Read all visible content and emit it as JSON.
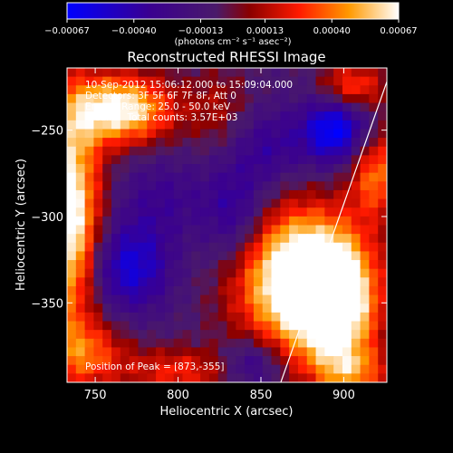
{
  "chart_data": {
    "type": "heatmap",
    "title": "Reconstructed RHESSI Image",
    "xlabel": "Heliocentric X (arcsec)",
    "ylabel": "Heliocentric Y (arcsec)",
    "xlim": [
      733,
      926
    ],
    "ylim": [
      -396,
      -214
    ],
    "xticks": [
      750,
      800,
      850,
      900
    ],
    "xtick_labels": [
      "750",
      "800",
      "850",
      "900"
    ],
    "yticks": [
      -250,
      -300,
      -350
    ],
    "ytick_labels": [
      "−250",
      "−300",
      "−350"
    ],
    "colorbar": {
      "range": [
        -0.00067,
        0.00067
      ],
      "ticks": [
        -0.00067,
        -0.0004,
        -0.00013,
        0.00013,
        0.0004,
        0.00067
      ],
      "tick_labels": [
        "−0.00067",
        "−0.00040",
        "−0.00013",
        "0.00013",
        "0.00040",
        "0.00067"
      ],
      "units": "(photons cm⁻² s⁻¹ asec⁻²)"
    },
    "annotations": [
      "10-Sep-2012 15:06:12.000 to 15:09:04.000",
      "Detectors: 3F 5F 6F 7F 8F, Att 0",
      "Energy Range: 25.0 - 50.0 keV",
      "Clean     Total counts: 3.57E+03",
      "Position of Peak = [873,-355]"
    ],
    "peak": [
      873,
      -355
    ],
    "limb_line": [
      [
        862,
        -396
      ],
      [
        926,
        -222
      ]
    ],
    "grid": false,
    "blobs": [
      {
        "x": 733,
        "y": -300,
        "sx": 14,
        "sy": 45,
        "a": 0.0009
      },
      {
        "x": 765,
        "y": -238,
        "sx": 22,
        "sy": 14,
        "a": 0.0008
      },
      {
        "x": 745,
        "y": -380,
        "sx": 18,
        "sy": 14,
        "a": 0.0004
      },
      {
        "x": 800,
        "y": -390,
        "sx": 22,
        "sy": 10,
        "a": 0.00035
      },
      {
        "x": 825,
        "y": -238,
        "sx": 14,
        "sy": 18,
        "a": 0.0002
      },
      {
        "x": 870,
        "y": -335,
        "sx": 26,
        "sy": 28,
        "a": 0.0009
      },
      {
        "x": 895,
        "y": -350,
        "sx": 18,
        "sy": 26,
        "a": 0.0008
      },
      {
        "x": 905,
        "y": -390,
        "sx": 16,
        "sy": 10,
        "a": 0.0004
      },
      {
        "x": 920,
        "y": -275,
        "sx": 12,
        "sy": 18,
        "a": 0.0005
      },
      {
        "x": 905,
        "y": -225,
        "sx": 14,
        "sy": 10,
        "a": 0.00045
      },
      {
        "x": 895,
        "y": -250,
        "sx": 14,
        "sy": 14,
        "a": -0.0006
      },
      {
        "x": 770,
        "y": -330,
        "sx": 18,
        "sy": 18,
        "a": -0.00045
      },
      {
        "x": 835,
        "y": -300,
        "sx": 14,
        "sy": 22,
        "a": -0.00035
      },
      {
        "x": 845,
        "y": -385,
        "sx": 12,
        "sy": 10,
        "a": -0.0003
      },
      {
        "x": 790,
        "y": -290,
        "sx": 20,
        "sy": 18,
        "a": -0.0002
      },
      {
        "x": 855,
        "y": -260,
        "sx": 16,
        "sy": 16,
        "a": -0.00025
      }
    ]
  }
}
